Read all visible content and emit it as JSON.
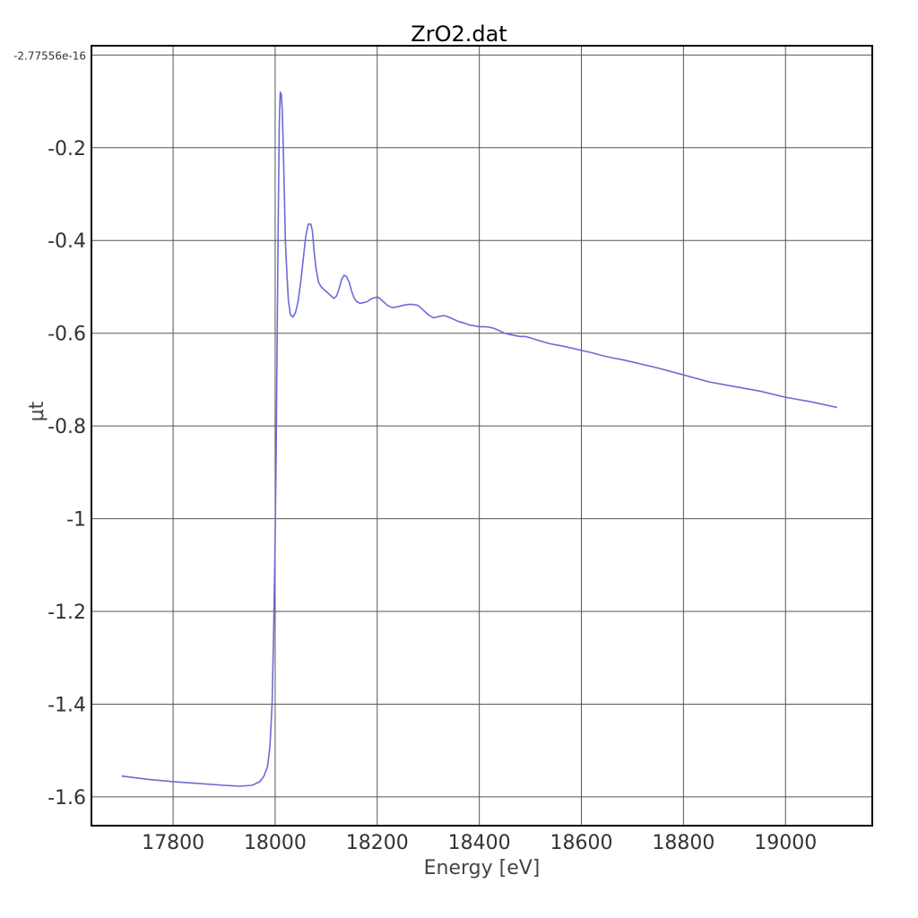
{
  "chart_data": {
    "type": "line",
    "title": "ZrO2.dat",
    "xlabel": "Energy [eV]",
    "ylabel": "μt",
    "xlim": [
      17640,
      19170
    ],
    "ylim": [
      -1.662,
      0.02
    ],
    "x_ticks": [
      17800,
      18000,
      18200,
      18400,
      18600,
      18800,
      19000
    ],
    "x_tick_labels": [
      "17800",
      "18000",
      "18200",
      "18400",
      "18600",
      "18800",
      "19000"
    ],
    "y_ticks": [
      -2.77556e-16,
      -0.2,
      -0.4,
      -0.6,
      -0.8,
      -1,
      -1.2,
      -1.4,
      -1.6
    ],
    "y_tick_labels": [
      "-2.77556e-16",
      "-0.2",
      "-0.4",
      "-0.6",
      "-0.8",
      "-1",
      "-1.2",
      "-1.4",
      "-1.6"
    ],
    "grid": true,
    "line_color": "#6b6bd6",
    "series": [
      {
        "x": [
          17700,
          17750,
          17800,
          17850,
          17900,
          17930,
          17955,
          17970,
          17978,
          17985,
          17990,
          17994,
          17997,
          18000,
          18002,
          18004,
          18006,
          18008,
          18010,
          18012,
          18014,
          18016,
          18018,
          18020,
          18023,
          18026,
          18030,
          18035,
          18040,
          18045,
          18050,
          18055,
          18060,
          18065,
          18070,
          18073,
          18076,
          18080,
          18085,
          18090,
          18095,
          18100,
          18110,
          18115,
          18120,
          18125,
          18130,
          18135,
          18140,
          18145,
          18150,
          18155,
          18160,
          18165,
          18170,
          18180,
          18190,
          18200,
          18205,
          18210,
          18220,
          18230,
          18240,
          18250,
          18260,
          18270,
          18280,
          18290,
          18300,
          18310,
          18320,
          18330,
          18340,
          18350,
          18360,
          18370,
          18380,
          18390,
          18400,
          18410,
          18420,
          18430,
          18440,
          18450,
          18460,
          18470,
          18480,
          18490,
          18500,
          18520,
          18540,
          18560,
          18580,
          18600,
          18620,
          18640,
          18660,
          18680,
          18700,
          18750,
          18800,
          18850,
          18900,
          18950,
          19000,
          19050,
          19100
        ],
        "y": [
          -1.555,
          -1.562,
          -1.567,
          -1.571,
          -1.575,
          -1.577,
          -1.575,
          -1.567,
          -1.555,
          -1.535,
          -1.49,
          -1.4,
          -1.25,
          -1.05,
          -0.85,
          -0.6,
          -0.35,
          -0.15,
          -0.08,
          -0.085,
          -0.12,
          -0.2,
          -0.3,
          -0.4,
          -0.47,
          -0.53,
          -0.56,
          -0.565,
          -0.555,
          -0.53,
          -0.49,
          -0.44,
          -0.39,
          -0.365,
          -0.365,
          -0.38,
          -0.42,
          -0.46,
          -0.49,
          -0.5,
          -0.505,
          -0.51,
          -0.52,
          -0.525,
          -0.52,
          -0.505,
          -0.485,
          -0.475,
          -0.478,
          -0.49,
          -0.51,
          -0.525,
          -0.532,
          -0.535,
          -0.535,
          -0.532,
          -0.525,
          -0.522,
          -0.525,
          -0.53,
          -0.54,
          -0.545,
          -0.543,
          -0.54,
          -0.538,
          -0.538,
          -0.54,
          -0.55,
          -0.56,
          -0.567,
          -0.564,
          -0.562,
          -0.565,
          -0.57,
          -0.575,
          -0.578,
          -0.582,
          -0.584,
          -0.586,
          -0.586,
          -0.587,
          -0.59,
          -0.595,
          -0.6,
          -0.603,
          -0.605,
          -0.607,
          -0.607,
          -0.61,
          -0.617,
          -0.623,
          -0.627,
          -0.632,
          -0.637,
          -0.642,
          -0.648,
          -0.653,
          -0.657,
          -0.662,
          -0.675,
          -0.69,
          -0.705,
          -0.715,
          -0.725,
          -0.738,
          -0.748,
          -0.76
        ]
      }
    ]
  }
}
